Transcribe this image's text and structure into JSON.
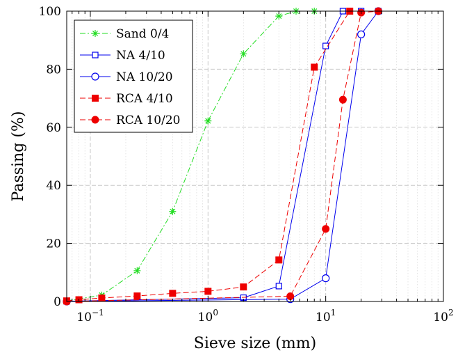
{
  "chart_data": {
    "type": "line",
    "xlabel": "Sieve size (mm)",
    "ylabel": "Passing (%)",
    "xscale": "log",
    "xlim": [
      0.063,
      100
    ],
    "ylim": [
      0,
      100
    ],
    "grid": true,
    "legend_position": "top-left",
    "x_ticks": [
      {
        "value": 0.1,
        "base": "10",
        "exp": "−1"
      },
      {
        "value": 1,
        "base": "10",
        "exp": "0"
      },
      {
        "value": 10,
        "base": "10",
        "exp": "1"
      },
      {
        "value": 100,
        "base": "10",
        "exp": "2"
      }
    ],
    "y_ticks": [
      {
        "value": 0,
        "label": "0"
      },
      {
        "value": 20,
        "label": "20"
      },
      {
        "value": 40,
        "label": "40"
      },
      {
        "value": 60,
        "label": "60"
      },
      {
        "value": 80,
        "label": "80"
      },
      {
        "value": 100,
        "label": "100"
      }
    ],
    "series": [
      {
        "name": "Sand 0/4",
        "color": "#22dd22",
        "line": "dashdot",
        "marker": "asterisk",
        "x": [
          0.063,
          0.125,
          0.25,
          0.5,
          1,
          2,
          4,
          5.6,
          8
        ],
        "y": [
          0.2,
          2.2,
          10.6,
          31,
          62.2,
          85.3,
          98.3,
          100,
          100
        ]
      },
      {
        "name": "NA 4/10",
        "color": "#0000ee",
        "line": "solid",
        "marker": "square-open",
        "x": [
          0.063,
          2,
          4,
          10,
          14,
          20,
          28
        ],
        "y": [
          0.1,
          1.3,
          5.3,
          88,
          100,
          100,
          100
        ]
      },
      {
        "name": "NA 10/20",
        "color": "#0000ee",
        "line": "solid",
        "marker": "circle-open",
        "x": [
          0.063,
          5,
          10,
          20,
          28
        ],
        "y": [
          0,
          0.8,
          8,
          92,
          100
        ]
      },
      {
        "name": "RCA 4/10",
        "color": "#ee0000",
        "line": "dashed",
        "marker": "square-filled",
        "x": [
          0.063,
          0.08,
          0.125,
          0.25,
          0.5,
          1,
          2,
          4,
          8,
          16
        ],
        "y": [
          0.2,
          0.6,
          1.2,
          1.9,
          2.8,
          3.5,
          5,
          14.3,
          80.7,
          100
        ]
      },
      {
        "name": "RCA 10/20",
        "color": "#ee0000",
        "line": "dashed",
        "marker": "circle-filled",
        "x": [
          0.063,
          5,
          10,
          14,
          20,
          28
        ],
        "y": [
          0,
          1.8,
          25,
          69.5,
          99.5,
          100
        ]
      }
    ]
  }
}
